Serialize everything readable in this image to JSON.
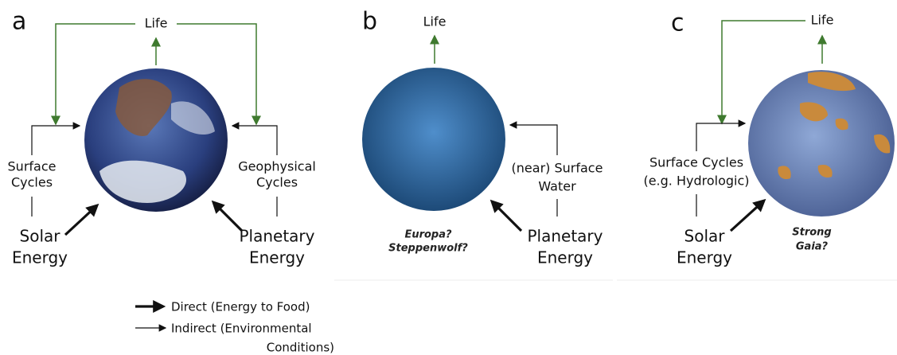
{
  "panels": [
    {
      "label": "a",
      "top": "Life",
      "cycle": [
        "Surface",
        "Cycles"
      ],
      "energy": [
        "Solar",
        "Energy"
      ],
      "cycle2": [
        "Geophysical",
        "Cycles"
      ],
      "energy2": [
        "Planetary",
        "Energy"
      ]
    },
    {
      "label": "b",
      "top": "Life",
      "cycle": [
        "(near) Surface",
        "Water"
      ],
      "energy": [
        "Planetary",
        "Energy"
      ],
      "note": [
        "Europa?",
        "Steppenwolf?"
      ]
    },
    {
      "label": "c",
      "top": "Life",
      "cycle": [
        "Surface Cycles",
        "(e.g. Hydrologic)"
      ],
      "energy": [
        "Solar",
        "Energy"
      ],
      "note": [
        "Strong",
        "Gaia?"
      ]
    }
  ],
  "legend": {
    "direct": "Direct (Energy to Food)",
    "indirect": [
      "Indirect (Environmental",
      "Conditions)"
    ]
  }
}
